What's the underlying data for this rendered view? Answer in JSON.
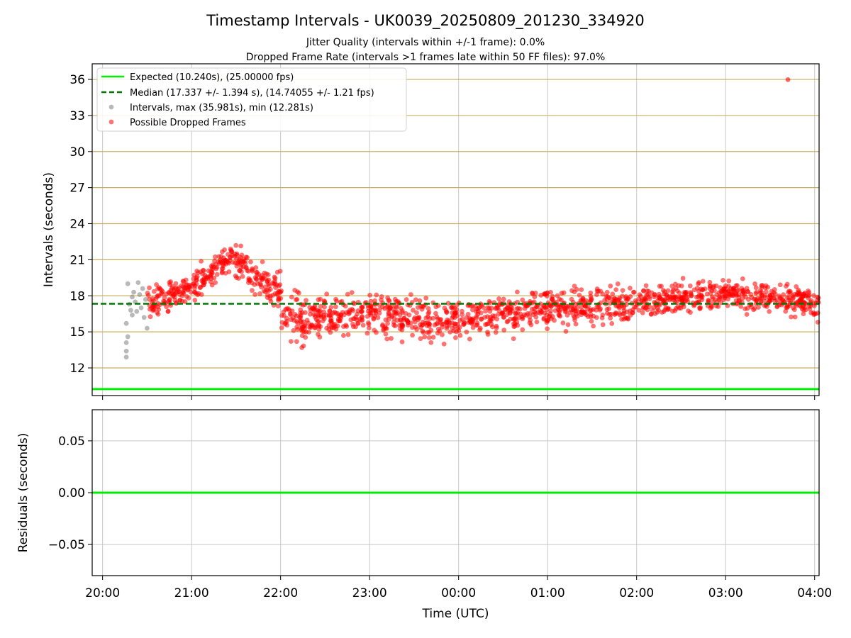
{
  "title": "Timestamp Intervals - UK0039_20250809_201230_334920",
  "subtitle_1": "Jitter Quality (intervals within +/-1 frame): 0.0%",
  "subtitle_2": "Dropped Frame Rate (intervals >1 frames late within 50 FF files): 97.0%",
  "colors": {
    "expected": "#00ee00",
    "median": "#007700",
    "intervals": "#808080",
    "dropped": "#ff0000",
    "hgrid": "#c8b060",
    "vgrid": "#c8c8c8"
  },
  "chart_data": [
    {
      "type": "scatter",
      "panel": "intervals",
      "ylabel": "Intervals (seconds)",
      "xlim": [
        "19:53",
        "04:03"
      ],
      "ylim": [
        9.7,
        37.3
      ],
      "x_ticks": [
        "20:00",
        "21:00",
        "22:00",
        "23:00",
        "00:00",
        "01:00",
        "02:00",
        "03:00",
        "04:00"
      ],
      "y_ticks": [
        12,
        15,
        18,
        21,
        24,
        27,
        30,
        33,
        36
      ],
      "grid": true,
      "legend_position": "top-left",
      "legend": [
        "Expected (10.240s), (25.00000 fps)",
        "Median (17.337 +/- 1.394 s), (14.74055 +/- 1.21 fps)",
        "Intervals, max (35.981s), min (12.281s)",
        "Possible Dropped Frames"
      ],
      "lines": {
        "expected": 10.24,
        "median": 17.337
      },
      "series": [
        {
          "name": "Intervals, max (35.981s), min (12.281s)",
          "points": [
            [
              "20:16",
              12.9
            ],
            [
              "20:16",
              13.4
            ],
            [
              "20:16",
              14.1
            ],
            [
              "20:17",
              14.6
            ],
            [
              "20:16",
              15.7
            ],
            [
              "20:17",
              19.0
            ],
            [
              "20:19",
              16.8
            ],
            [
              "20:20",
              17.9
            ],
            [
              "20:21",
              18.3
            ],
            [
              "20:22",
              17.5
            ],
            [
              "20:23",
              16.7
            ],
            [
              "20:24",
              19.1
            ],
            [
              "20:25",
              18.1
            ],
            [
              "20:26",
              17.0
            ],
            [
              "20:27",
              18.6
            ],
            [
              "20:28",
              16.2
            ],
            [
              "20:29",
              17.7
            ],
            [
              "20:30",
              15.3
            ],
            [
              "20:18",
              17.3
            ],
            [
              "20:20",
              16.4
            ]
          ]
        },
        {
          "name": "Possible Dropped Frames",
          "outlier": [
            "03:42",
            35.98
          ],
          "bands": [
            {
              "start": "20:30",
              "end": "21:00",
              "y0": 17.4,
              "y1": 18.7,
              "spread": 0.8
            },
            {
              "start": "21:00",
              "end": "21:25",
              "y0": 18.7,
              "y1": 21.0,
              "spread": 0.9
            },
            {
              "start": "21:25",
              "end": "21:38",
              "y0": 21.0,
              "y1": 20.4,
              "spread": 1.0
            },
            {
              "start": "21:38",
              "end": "22:00",
              "y0": 19.8,
              "y1": 18.2,
              "spread": 1.0
            },
            {
              "start": "22:00",
              "end": "22:20",
              "y0": 16.3,
              "y1": 15.6,
              "spread": 1.6
            },
            {
              "start": "22:20",
              "end": "23:00",
              "y0": 16.0,
              "y1": 16.6,
              "spread": 1.1
            },
            {
              "start": "23:00",
              "end": "23:50",
              "y0": 16.6,
              "y1": 15.7,
              "spread": 1.3
            },
            {
              "start": "23:50",
              "end": "01:00",
              "y0": 15.9,
              "y1": 17.0,
              "spread": 1.1
            },
            {
              "start": "01:00",
              "end": "02:00",
              "y0": 17.0,
              "y1": 17.2,
              "spread": 1.0
            },
            {
              "start": "02:00",
              "end": "03:00",
              "y0": 17.3,
              "y1": 18.2,
              "spread": 0.9
            },
            {
              "start": "03:00",
              "end": "04:03",
              "y0": 18.2,
              "y1": 17.4,
              "spread": 0.9
            }
          ]
        }
      ]
    },
    {
      "type": "line",
      "panel": "residuals",
      "xlabel": "Time (UTC)",
      "ylabel": "Residuals (seconds)",
      "xlim": [
        "19:53",
        "04:03"
      ],
      "ylim": [
        -0.08,
        0.08
      ],
      "x_ticks": [
        "20:00",
        "21:00",
        "22:00",
        "23:00",
        "00:00",
        "01:00",
        "02:00",
        "03:00",
        "04:00"
      ],
      "y_ticks": [
        "0.05",
        "0.00",
        "−0.05"
      ],
      "y_tick_values": [
        0.05,
        0,
        -0.05
      ],
      "grid": true,
      "series": [
        {
          "name": "residual",
          "value": 0.0
        }
      ]
    }
  ]
}
